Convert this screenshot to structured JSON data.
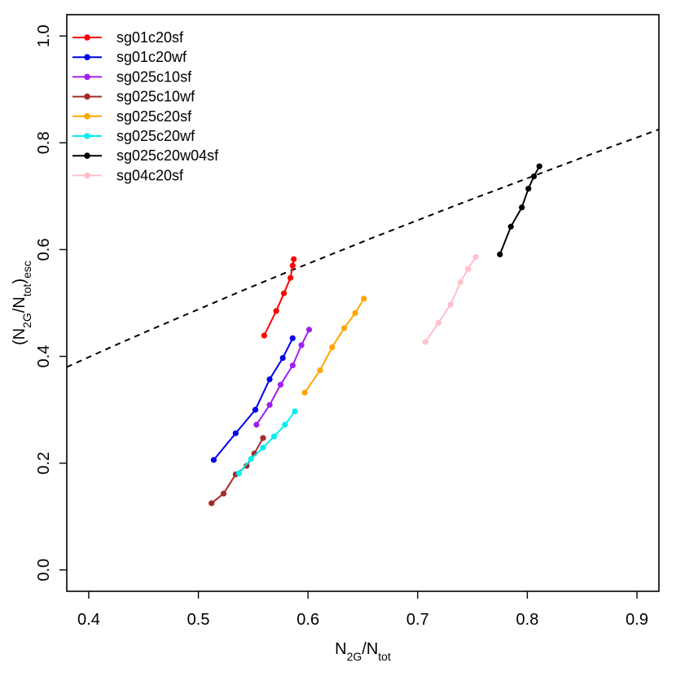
{
  "chart_data": {
    "type": "line",
    "title": "",
    "xlabel": {
      "main": "N",
      "sub1": "2G",
      "mid": "/N",
      "sub2": "tot"
    },
    "ylabel": {
      "open": "(N",
      "sub1": "2G",
      "mid": "/N",
      "sub2": "tot",
      "close": ")",
      "sub3": "esc"
    },
    "xlim": [
      0.38,
      0.92
    ],
    "ylim": [
      -0.04,
      1.04
    ],
    "xticks": [
      0.4,
      0.5,
      0.6,
      0.7,
      0.8,
      0.9
    ],
    "xtick_labels": [
      "0.4",
      "0.5",
      "0.6",
      "0.7",
      "0.8",
      "0.9"
    ],
    "yticks": [
      0.0,
      0.2,
      0.4,
      0.6,
      0.8,
      1.0
    ],
    "ytick_labels": [
      "0.0",
      "0.2",
      "0.4",
      "0.6",
      "0.8",
      "1.0"
    ],
    "grid": false,
    "legend": {
      "placement": "top-left"
    },
    "reference_line": {
      "style": "dashed",
      "color": "#000000",
      "x": [
        0.38,
        0.42,
        0.46,
        0.5,
        0.54,
        0.58,
        0.62,
        0.66,
        0.7,
        0.74,
        0.78,
        0.82,
        0.86,
        0.9,
        0.92
      ],
      "y": [
        0.38,
        0.417,
        0.453,
        0.488,
        0.523,
        0.557,
        0.59,
        0.623,
        0.655,
        0.687,
        0.718,
        0.749,
        0.78,
        0.81,
        0.825
      ]
    },
    "series": [
      {
        "name": "sg01c20sf",
        "color": "#ff0000",
        "x": [
          0.56,
          0.571,
          0.578,
          0.584,
          0.586,
          0.587
        ],
        "y": [
          0.439,
          0.485,
          0.518,
          0.547,
          0.57,
          0.582
        ]
      },
      {
        "name": "sg01c20wf",
        "color": "#0000ee",
        "x": [
          0.514,
          0.534,
          0.552,
          0.565,
          0.577,
          0.586
        ],
        "y": [
          0.206,
          0.256,
          0.3,
          0.357,
          0.397,
          0.434
        ]
      },
      {
        "name": "sg025c10sf",
        "color": "#a020f0",
        "x": [
          0.553,
          0.565,
          0.575,
          0.586,
          0.594,
          0.601
        ],
        "y": [
          0.272,
          0.309,
          0.347,
          0.383,
          0.421,
          0.45
        ]
      },
      {
        "name": "sg025c10wf",
        "color": "#a52a2a",
        "x": [
          0.512,
          0.523,
          0.534,
          0.544,
          0.551,
          0.559
        ],
        "y": [
          0.125,
          0.143,
          0.179,
          0.195,
          0.218,
          0.247
        ]
      },
      {
        "name": "sg025c20sf",
        "color": "#ffa500",
        "x": [
          0.597,
          0.611,
          0.622,
          0.633,
          0.643,
          0.651
        ],
        "y": [
          0.332,
          0.374,
          0.417,
          0.453,
          0.481,
          0.508
        ]
      },
      {
        "name": "sg025c20wf",
        "color": "#00eeee",
        "x": [
          0.537,
          0.548,
          0.559,
          0.569,
          0.579,
          0.588
        ],
        "y": [
          0.181,
          0.208,
          0.229,
          0.25,
          0.272,
          0.297
        ]
      },
      {
        "name": "sg025c20w04sf",
        "color": "#000000",
        "x": [
          0.775,
          0.785,
          0.795,
          0.801,
          0.806,
          0.811
        ],
        "y": [
          0.591,
          0.643,
          0.679,
          0.714,
          0.737,
          0.756
        ]
      },
      {
        "name": "sg04c20sf",
        "color": "#ffc0cb",
        "x": [
          0.707,
          0.719,
          0.73,
          0.739,
          0.746,
          0.753
        ],
        "y": [
          0.427,
          0.463,
          0.497,
          0.539,
          0.564,
          0.586
        ]
      }
    ]
  }
}
